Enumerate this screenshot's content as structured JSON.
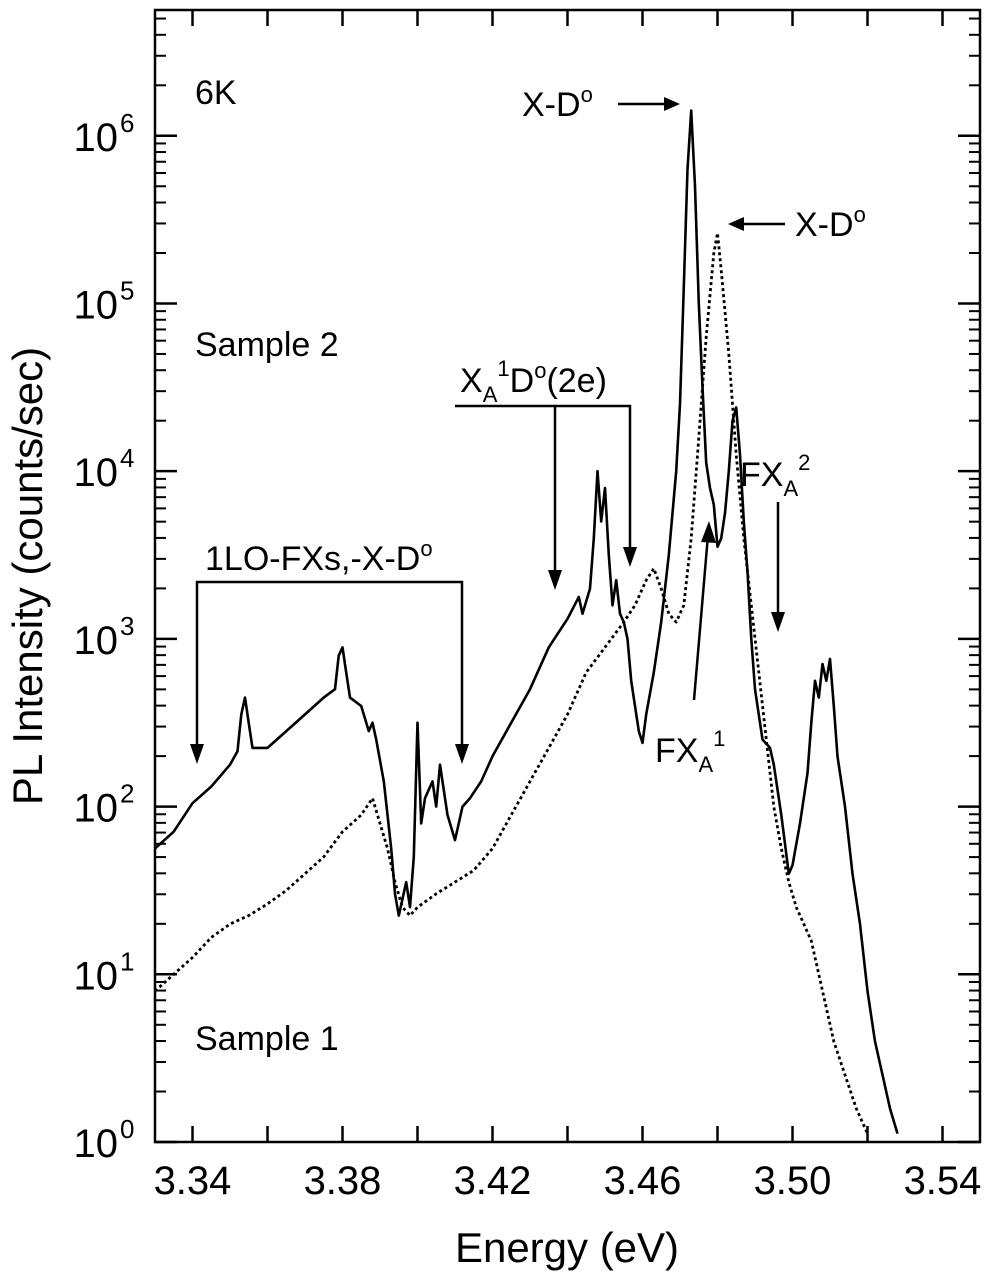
{
  "chart_data": {
    "type": "line",
    "xlabel": "Energy (eV)",
    "ylabel": "PL Intensity (counts/sec)",
    "xlim": [
      3.33,
      3.55
    ],
    "ylim_log10": [
      0,
      6.75
    ],
    "yscale": "log",
    "x_ticks": [
      3.34,
      3.38,
      3.42,
      3.46,
      3.5,
      3.54
    ],
    "x_tick_labels": [
      "3.34",
      "3.38",
      "3.42",
      "3.46",
      "3.50",
      "3.54"
    ],
    "y_ticks": [
      {
        "base": "10",
        "exp": "0"
      },
      {
        "base": "10",
        "exp": "1"
      },
      {
        "base": "10",
        "exp": "2"
      },
      {
        "base": "10",
        "exp": "3"
      },
      {
        "base": "10",
        "exp": "4"
      },
      {
        "base": "10",
        "exp": "5"
      },
      {
        "base": "10",
        "exp": "6"
      }
    ],
    "grid": false,
    "series": [
      {
        "line_style": "solid",
        "color": "#000000",
        "points": [
          [
            3.33,
            1.75
          ],
          [
            3.335,
            1.85
          ],
          [
            3.34,
            2.02
          ],
          [
            3.345,
            2.12
          ],
          [
            3.35,
            2.25
          ],
          [
            3.352,
            2.33
          ],
          [
            3.353,
            2.55
          ],
          [
            3.354,
            2.65
          ],
          [
            3.355,
            2.5
          ],
          [
            3.356,
            2.35
          ],
          [
            3.36,
            2.35
          ],
          [
            3.365,
            2.45
          ],
          [
            3.37,
            2.55
          ],
          [
            3.375,
            2.65
          ],
          [
            3.378,
            2.7
          ],
          [
            3.379,
            2.9
          ],
          [
            3.38,
            2.95
          ],
          [
            3.381,
            2.8
          ],
          [
            3.382,
            2.65
          ],
          [
            3.385,
            2.6
          ],
          [
            3.387,
            2.45
          ],
          [
            3.388,
            2.5
          ],
          [
            3.389,
            2.4
          ],
          [
            3.391,
            2.15
          ],
          [
            3.393,
            1.75
          ],
          [
            3.394,
            1.48
          ],
          [
            3.395,
            1.35
          ],
          [
            3.397,
            1.55
          ],
          [
            3.398,
            1.4
          ],
          [
            3.399,
            1.7
          ],
          [
            3.4,
            2.5
          ],
          [
            3.401,
            1.9
          ],
          [
            3.402,
            2.05
          ],
          [
            3.404,
            2.15
          ],
          [
            3.405,
            2.0
          ],
          [
            3.406,
            2.25
          ],
          [
            3.408,
            1.95
          ],
          [
            3.41,
            1.8
          ],
          [
            3.412,
            2.0
          ],
          [
            3.414,
            2.05
          ],
          [
            3.417,
            2.15
          ],
          [
            3.42,
            2.3
          ],
          [
            3.425,
            2.5
          ],
          [
            3.43,
            2.7
          ],
          [
            3.435,
            2.95
          ],
          [
            3.44,
            3.12
          ],
          [
            3.443,
            3.25
          ],
          [
            3.444,
            3.15
          ],
          [
            3.446,
            3.3
          ],
          [
            3.447,
            3.6
          ],
          [
            3.448,
            4.0
          ],
          [
            3.449,
            3.7
          ],
          [
            3.45,
            3.9
          ],
          [
            3.451,
            3.5
          ],
          [
            3.452,
            3.2
          ],
          [
            3.453,
            3.35
          ],
          [
            3.454,
            3.15
          ],
          [
            3.455,
            3.1
          ],
          [
            3.456,
            3.0
          ],
          [
            3.457,
            2.75
          ],
          [
            3.458,
            2.6
          ],
          [
            3.459,
            2.45
          ],
          [
            3.46,
            2.38
          ],
          [
            3.461,
            2.55
          ],
          [
            3.463,
            2.8
          ],
          [
            3.465,
            3.1
          ],
          [
            3.467,
            3.5
          ],
          [
            3.469,
            4.0
          ],
          [
            3.47,
            4.4
          ],
          [
            3.471,
            5.1
          ],
          [
            3.472,
            5.8
          ],
          [
            3.473,
            6.15
          ],
          [
            3.474,
            5.7
          ],
          [
            3.475,
            5.0
          ],
          [
            3.476,
            4.5
          ],
          [
            3.477,
            4.05
          ],
          [
            3.478,
            3.9
          ],
          [
            3.479,
            3.8
          ],
          [
            3.48,
            3.55
          ],
          [
            3.481,
            3.6
          ],
          [
            3.482,
            3.75
          ],
          [
            3.483,
            4.0
          ],
          [
            3.484,
            4.3
          ],
          [
            3.485,
            4.38
          ],
          [
            3.486,
            4.1
          ],
          [
            3.487,
            3.7
          ],
          [
            3.488,
            3.4
          ],
          [
            3.489,
            3.0
          ],
          [
            3.49,
            2.7
          ],
          [
            3.492,
            2.4
          ],
          [
            3.494,
            2.35
          ],
          [
            3.495,
            2.25
          ],
          [
            3.497,
            1.95
          ],
          [
            3.499,
            1.6
          ],
          [
            3.5,
            1.65
          ],
          [
            3.502,
            1.9
          ],
          [
            3.504,
            2.2
          ],
          [
            3.505,
            2.5
          ],
          [
            3.506,
            2.75
          ],
          [
            3.507,
            2.65
          ],
          [
            3.508,
            2.85
          ],
          [
            3.509,
            2.75
          ],
          [
            3.51,
            2.88
          ],
          [
            3.511,
            2.6
          ],
          [
            3.512,
            2.3
          ],
          [
            3.514,
            2.0
          ],
          [
            3.516,
            1.6
          ],
          [
            3.518,
            1.3
          ],
          [
            3.52,
            0.9
          ],
          [
            3.522,
            0.6
          ],
          [
            3.524,
            0.4
          ],
          [
            3.526,
            0.2
          ],
          [
            3.528,
            0.05
          ]
        ]
      },
      {
        "line_style": "dotted",
        "color": "#000000",
        "points": [
          [
            3.33,
            0.9
          ],
          [
            3.335,
            1.0
          ],
          [
            3.34,
            1.1
          ],
          [
            3.345,
            1.22
          ],
          [
            3.35,
            1.3
          ],
          [
            3.355,
            1.35
          ],
          [
            3.36,
            1.42
          ],
          [
            3.365,
            1.5
          ],
          [
            3.37,
            1.6
          ],
          [
            3.375,
            1.7
          ],
          [
            3.38,
            1.85
          ],
          [
            3.385,
            1.95
          ],
          [
            3.388,
            2.05
          ],
          [
            3.39,
            1.9
          ],
          [
            3.392,
            1.75
          ],
          [
            3.394,
            1.55
          ],
          [
            3.396,
            1.4
          ],
          [
            3.398,
            1.35
          ],
          [
            3.4,
            1.4
          ],
          [
            3.405,
            1.48
          ],
          [
            3.41,
            1.55
          ],
          [
            3.415,
            1.62
          ],
          [
            3.42,
            1.75
          ],
          [
            3.425,
            1.95
          ],
          [
            3.43,
            2.15
          ],
          [
            3.435,
            2.35
          ],
          [
            3.44,
            2.55
          ],
          [
            3.445,
            2.8
          ],
          [
            3.45,
            2.95
          ],
          [
            3.455,
            3.1
          ],
          [
            3.458,
            3.2
          ],
          [
            3.461,
            3.35
          ],
          [
            3.463,
            3.42
          ],
          [
            3.465,
            3.3
          ],
          [
            3.467,
            3.15
          ],
          [
            3.469,
            3.1
          ],
          [
            3.471,
            3.2
          ],
          [
            3.473,
            3.6
          ],
          [
            3.475,
            4.2
          ],
          [
            3.477,
            4.8
          ],
          [
            3.479,
            5.3
          ],
          [
            3.48,
            5.42
          ],
          [
            3.481,
            5.2
          ],
          [
            3.483,
            4.7
          ],
          [
            3.485,
            4.1
          ],
          [
            3.487,
            3.6
          ],
          [
            3.489,
            3.2
          ],
          [
            3.491,
            2.8
          ],
          [
            3.493,
            2.4
          ],
          [
            3.495,
            2.0
          ],
          [
            3.497,
            1.75
          ],
          [
            3.499,
            1.55
          ],
          [
            3.501,
            1.4
          ],
          [
            3.503,
            1.3
          ],
          [
            3.505,
            1.2
          ],
          [
            3.507,
            1.0
          ],
          [
            3.509,
            0.8
          ],
          [
            3.511,
            0.6
          ],
          [
            3.514,
            0.4
          ],
          [
            3.517,
            0.2
          ],
          [
            3.52,
            0.05
          ]
        ]
      }
    ],
    "annotations": [
      {
        "id": "temp",
        "text": "6K"
      },
      {
        "id": "sample2",
        "text": "Sample 2"
      },
      {
        "id": "sample1",
        "text": "Sample 1"
      },
      {
        "id": "xdo-solid",
        "base": "X-D",
        "sup": "o"
      },
      {
        "id": "xdo-dotted",
        "base": "X-D",
        "sup": "o"
      },
      {
        "id": "xa1do",
        "parts": [
          {
            "t": "X"
          },
          {
            "sub": "A"
          },
          {
            "sup": "1"
          },
          {
            "t": "D"
          },
          {
            "sup": "o"
          },
          {
            "t": "(2e)"
          }
        ]
      },
      {
        "id": "lo-fx",
        "base": "1LO-FXs,-X-D",
        "sup": "o"
      },
      {
        "id": "fxa1",
        "base": "FX",
        "sub": "A",
        "sup": "1"
      },
      {
        "id": "fxa2",
        "base": "FX",
        "sub": "A",
        "sup": "2"
      }
    ]
  }
}
